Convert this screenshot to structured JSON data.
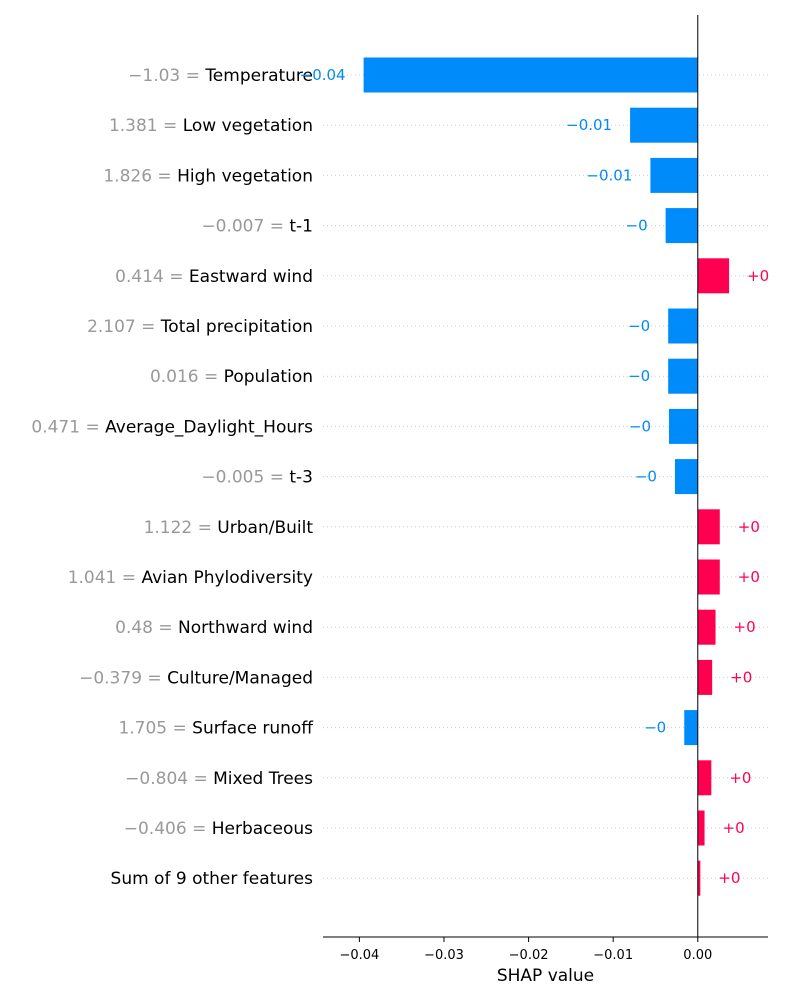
{
  "chart_data": {
    "type": "bar",
    "orientation": "horizontal",
    "xlabel": "SHAP value",
    "xlim": [
      -0.0443,
      0.0083
    ],
    "xticks": [
      -0.04,
      -0.03,
      -0.02,
      -0.01,
      0.0
    ],
    "xtick_labels": [
      "−0.04",
      "−0.03",
      "−0.02",
      "−0.01",
      "0.00"
    ],
    "colors": {
      "positive": "#ff0051",
      "negative": "#008bfb",
      "feature_value": "#999999"
    },
    "rows": [
      {
        "value_text": "−1.03",
        "feature": "Temperature",
        "shap": -0.0395,
        "label": "−0.04"
      },
      {
        "value_text": "1.381",
        "feature": "Low vegetation",
        "shap": -0.008,
        "label": "−0.01"
      },
      {
        "value_text": "1.826",
        "feature": "High vegetation",
        "shap": -0.0056,
        "label": "−0.01"
      },
      {
        "value_text": "−0.007",
        "feature": "t-1",
        "shap": -0.0038,
        "label": "−0"
      },
      {
        "value_text": "0.414",
        "feature": "Eastward wind",
        "shap": 0.0037,
        "label": "+0"
      },
      {
        "value_text": "2.107",
        "feature": "Total precipitation",
        "shap": -0.0035,
        "label": "−0"
      },
      {
        "value_text": "0.016",
        "feature": "Population",
        "shap": -0.0035,
        "label": "−0"
      },
      {
        "value_text": "0.471",
        "feature": "Average_Daylight_Hours",
        "shap": -0.0034,
        "label": "−0"
      },
      {
        "value_text": "−0.005",
        "feature": "t-3",
        "shap": -0.0027,
        "label": "−0"
      },
      {
        "value_text": "1.122",
        "feature": "Urban/Built",
        "shap": 0.0026,
        "label": "+0"
      },
      {
        "value_text": "1.041",
        "feature": "Avian Phylodiversity",
        "shap": 0.0026,
        "label": "+0"
      },
      {
        "value_text": "0.48",
        "feature": "Northward wind",
        "shap": 0.0021,
        "label": "+0"
      },
      {
        "value_text": "−0.379",
        "feature": "Culture/Managed",
        "shap": 0.0017,
        "label": "+0"
      },
      {
        "value_text": "1.705",
        "feature": "Surface runoff",
        "shap": -0.0016,
        "label": "−0"
      },
      {
        "value_text": "−0.804",
        "feature": "Mixed Trees",
        "shap": 0.0016,
        "label": "+0"
      },
      {
        "value_text": "−0.406",
        "feature": "Herbaceous",
        "shap": 0.0008,
        "label": "+0"
      },
      {
        "value_text": "",
        "feature": "Sum of 9 other features",
        "shap": 0.0003,
        "label": "+0"
      }
    ]
  }
}
